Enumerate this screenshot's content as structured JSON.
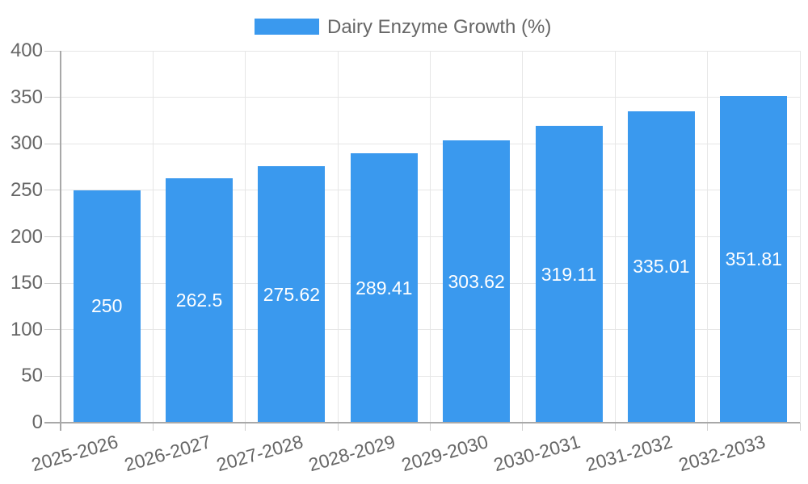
{
  "chart_data": {
    "type": "bar",
    "title": "",
    "legend": {
      "label": "Dairy Enzyme Growth (%)",
      "position": "top"
    },
    "categories": [
      "2025-2026",
      "2026-2027",
      "2027-2028",
      "2028-2029",
      "2029-2030",
      "2030-2031",
      "2031-2032",
      "2032-2033"
    ],
    "series": [
      {
        "name": "Dairy Enzyme Growth (%)",
        "color": "#3A99EE",
        "values": [
          250,
          262.5,
          275.62,
          289.41,
          303.62,
          319.11,
          335.01,
          351.81
        ],
        "labels": [
          "250",
          "262.5",
          "275.62",
          "289.41",
          "303.62",
          "319.11",
          "335.01",
          "351.81"
        ]
      }
    ],
    "xlabel": "",
    "ylabel": "",
    "ylim": [
      0,
      400
    ],
    "yticks": [
      0,
      50,
      100,
      150,
      200,
      250,
      300,
      350,
      400
    ],
    "grid": true,
    "label_position": "center-inside",
    "colors": {
      "background": "#ffffff",
      "axis_text": "#666666",
      "grid_line": "#e6e6e6",
      "axis_line": "#a8a8a8",
      "tick_mark": "#cfcfcf",
      "bar_label": "#ffffff"
    }
  }
}
